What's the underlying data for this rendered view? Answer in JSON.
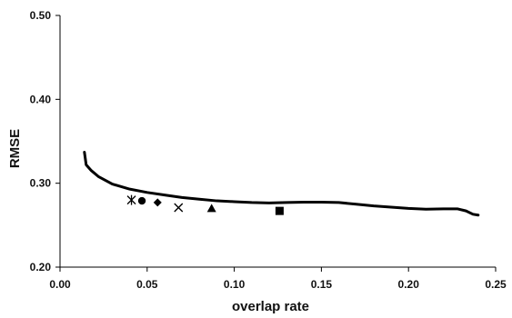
{
  "chart_data": {
    "type": "scatter",
    "title": "",
    "xlabel": "overlap rate",
    "ylabel": "RMSE",
    "xlim": [
      0.0,
      0.25
    ],
    "ylim": [
      0.2,
      0.5
    ],
    "x_ticks": [
      "0.00",
      "0.05",
      "0.10",
      "0.15",
      "0.20",
      "0.25"
    ],
    "y_ticks": [
      "0.20",
      "0.30",
      "0.40",
      "0.50"
    ],
    "grid": false,
    "legend": "none",
    "series": [
      {
        "kind": "line",
        "color": "#000000",
        "points": [
          [
            0.014,
            0.337
          ],
          [
            0.015,
            0.322
          ],
          [
            0.018,
            0.315
          ],
          [
            0.022,
            0.308
          ],
          [
            0.03,
            0.299
          ],
          [
            0.04,
            0.293
          ],
          [
            0.05,
            0.289
          ],
          [
            0.06,
            0.286
          ],
          [
            0.07,
            0.283
          ],
          [
            0.08,
            0.281
          ],
          [
            0.09,
            0.279
          ],
          [
            0.1,
            0.278
          ],
          [
            0.11,
            0.277
          ],
          [
            0.12,
            0.2765
          ],
          [
            0.13,
            0.277
          ],
          [
            0.14,
            0.2775
          ],
          [
            0.15,
            0.2775
          ],
          [
            0.16,
            0.277
          ],
          [
            0.17,
            0.275
          ],
          [
            0.18,
            0.273
          ],
          [
            0.19,
            0.2715
          ],
          [
            0.2,
            0.27
          ],
          [
            0.21,
            0.269
          ],
          [
            0.22,
            0.2695
          ],
          [
            0.228,
            0.2695
          ],
          [
            0.233,
            0.267
          ],
          [
            0.237,
            0.263
          ],
          [
            0.24,
            0.262
          ]
        ]
      },
      {
        "kind": "marker",
        "marker": "asterisk",
        "color": "#000000",
        "points": [
          [
            0.041,
            0.28
          ]
        ]
      },
      {
        "kind": "marker",
        "marker": "circle",
        "color": "#000000",
        "points": [
          [
            0.047,
            0.279
          ]
        ]
      },
      {
        "kind": "marker",
        "marker": "diamond",
        "color": "#000000",
        "points": [
          [
            0.056,
            0.277
          ]
        ]
      },
      {
        "kind": "marker",
        "marker": "cross",
        "color": "#000000",
        "points": [
          [
            0.068,
            0.271
          ]
        ]
      },
      {
        "kind": "marker",
        "marker": "triangle",
        "color": "#000000",
        "points": [
          [
            0.087,
            0.27
          ]
        ]
      },
      {
        "kind": "marker",
        "marker": "square",
        "color": "#000000",
        "points": [
          [
            0.126,
            0.267
          ]
        ]
      }
    ]
  }
}
